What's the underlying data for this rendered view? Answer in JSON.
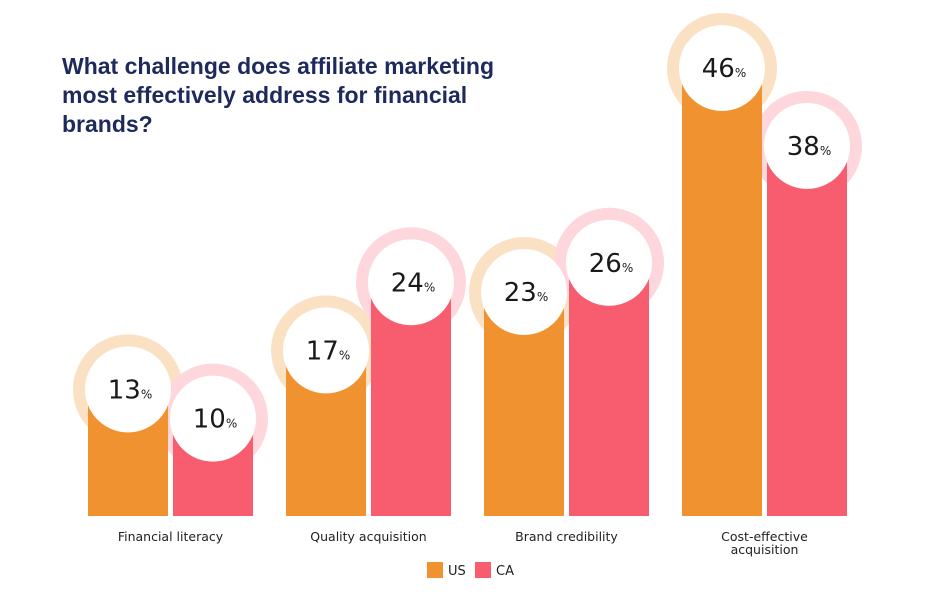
{
  "title_lines": [
    "What challenge does affiliate marketing",
    "most effectively address for financial",
    "brands?"
  ],
  "percent_suffix": "%",
  "colors": {
    "US": "#f0922f",
    "CA": "#f75d6f",
    "US_halo": "#fbe1c4",
    "CA_halo": "#fdd7dc"
  },
  "chart_data": {
    "type": "bar",
    "title": "What challenge does affiliate marketing most effectively address for financial brands?",
    "categories": [
      [
        "Financial literacy"
      ],
      [
        "Quality acquisition"
      ],
      [
        "Brand credibility"
      ],
      [
        "Cost-effective",
        "acquisition"
      ]
    ],
    "series": [
      {
        "name": "US",
        "values": [
          13,
          17,
          23,
          46
        ]
      },
      {
        "name": "CA",
        "values": [
          10,
          24,
          26,
          38
        ]
      }
    ],
    "ylim": [
      0,
      46
    ],
    "grid": false,
    "legend": "bottom-center"
  }
}
